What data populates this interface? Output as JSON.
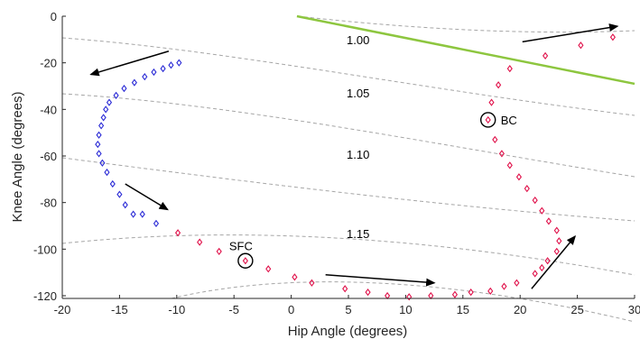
{
  "chart_data": {
    "type": "scatter",
    "xlabel": "Hip Angle (degrees)",
    "ylabel": "Knee Angle (degrees)",
    "xlim": [
      -20,
      30
    ],
    "ylim": [
      -122,
      0
    ],
    "xticks": [
      -20,
      -15,
      -10,
      -5,
      0,
      5,
      10,
      15,
      20,
      25,
      30
    ],
    "yticks": [
      0,
      -20,
      -40,
      -60,
      -80,
      -100,
      -120
    ],
    "grid": false,
    "colors": {
      "series_blue": "#2b2bd6",
      "series_red": "#e0114a",
      "boundary": "#8dc63f",
      "contour": "#a6a6a6",
      "arrow": "#000000"
    },
    "series": [
      {
        "color": "#2b2bd6",
        "marker": "diamond",
        "points": [
          [
            -9.8,
            -20
          ],
          [
            -10.5,
            -21
          ],
          [
            -11.2,
            -22.5
          ],
          [
            -12,
            -24
          ],
          [
            -12.8,
            -26
          ],
          [
            -13.7,
            -28.5
          ],
          [
            -14.6,
            -31
          ],
          [
            -15.3,
            -34
          ],
          [
            -15.9,
            -37
          ],
          [
            -16.2,
            -40
          ],
          [
            -16.4,
            -43.5
          ],
          [
            -16.6,
            -47
          ],
          [
            -16.8,
            -51
          ],
          [
            -16.9,
            -55
          ],
          [
            -16.8,
            -59
          ],
          [
            -16.5,
            -63
          ],
          [
            -16.1,
            -67
          ],
          [
            -15.6,
            -72
          ],
          [
            -15,
            -76.5
          ],
          [
            -14.5,
            -81
          ],
          [
            -13.8,
            -85
          ],
          [
            -13,
            -85
          ],
          [
            -11.8,
            -89
          ]
        ]
      },
      {
        "color": "#e0114a",
        "marker": "diamond",
        "points": [
          [
            -9.9,
            -93
          ],
          [
            -8,
            -97
          ],
          [
            -6.3,
            -101
          ],
          [
            -4,
            -105
          ],
          [
            -2,
            -108.5
          ],
          [
            0.3,
            -112
          ],
          [
            1.8,
            -114.5
          ],
          [
            4.7,
            -117
          ],
          [
            6.7,
            -118.5
          ],
          [
            8.4,
            -120
          ],
          [
            10.3,
            -120.5
          ],
          [
            12.2,
            -120
          ],
          [
            14.3,
            -119.5
          ],
          [
            15.7,
            -118.5
          ],
          [
            17.4,
            -118
          ],
          [
            18.6,
            -116
          ],
          [
            19.7,
            -114.5
          ],
          [
            21.3,
            -110.5
          ],
          [
            21.9,
            -108
          ],
          [
            22.4,
            -105
          ],
          [
            23.2,
            -101
          ],
          [
            23.4,
            -96.5
          ],
          [
            23.2,
            -92
          ],
          [
            22.5,
            -88
          ],
          [
            21.9,
            -83.5
          ],
          [
            21.3,
            -79
          ],
          [
            20.6,
            -74
          ],
          [
            19.9,
            -69
          ],
          [
            19.1,
            -64
          ],
          [
            18.4,
            -59
          ],
          [
            17.8,
            -53
          ],
          [
            17.2,
            -44.5
          ],
          [
            17.5,
            -37
          ],
          [
            18.1,
            -29.5
          ],
          [
            19.1,
            -22.5
          ],
          [
            22.2,
            -17
          ],
          [
            25.3,
            -12.5
          ],
          [
            28.1,
            -9
          ]
        ]
      }
    ],
    "boundary_line": {
      "x": [
        0.5,
        30
      ],
      "y": [
        0,
        -29
      ],
      "color": "#8dc63f"
    },
    "contour_labels": [
      "1.00",
      "1.05",
      "1.10",
      "1.15"
    ],
    "annotations": [
      {
        "label": "BC",
        "x": 17.2,
        "y": -44.5
      },
      {
        "label": "SFC",
        "x": -4,
        "y": -105
      }
    ],
    "arrows": [
      {
        "from": [
          -10.7,
          -15
        ],
        "to": [
          -17.5,
          -25
        ]
      },
      {
        "from": [
          -14.5,
          -72
        ],
        "to": [
          -10.8,
          -83
        ]
      },
      {
        "from": [
          3,
          -111
        ],
        "to": [
          12.5,
          -114.5
        ]
      },
      {
        "from": [
          21,
          -117
        ],
        "to": [
          24.8,
          -94.5
        ]
      },
      {
        "from": [
          20.2,
          -11
        ],
        "to": [
          28.5,
          -4.3
        ]
      }
    ]
  }
}
